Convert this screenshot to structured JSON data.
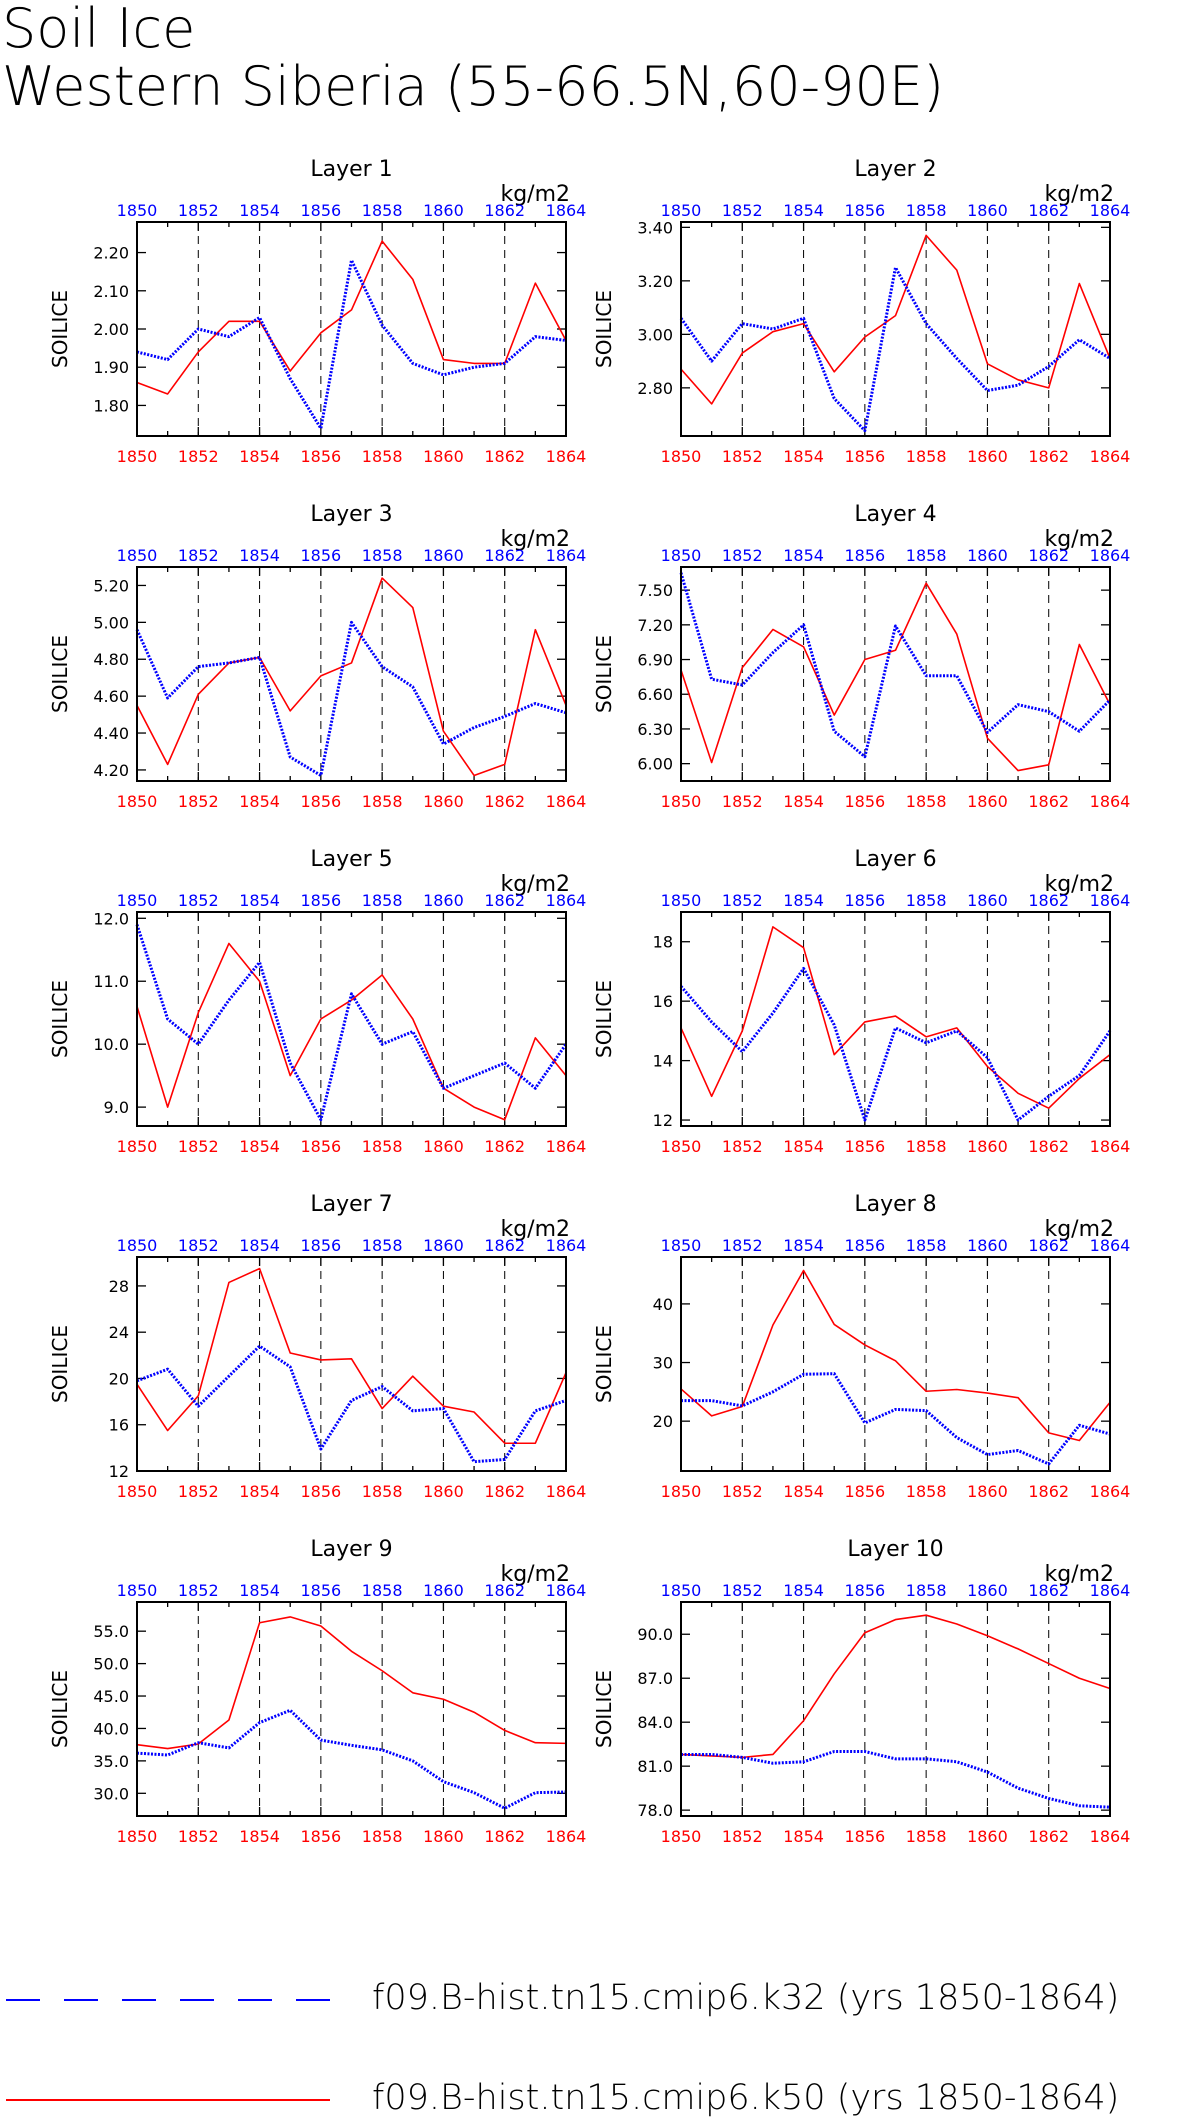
{
  "title": {
    "line1": "Soil Ice",
    "line2": "Western Siberia (55-66.5N,60-90E)"
  },
  "colors": {
    "k32": "#0000ff",
    "k50": "#ff0000",
    "axis": "#000000"
  },
  "legend": [
    {
      "label": "f09.B-hist.tn15.cmip6.k32 (yrs 1850-1864)",
      "color": "#0000ff",
      "style": "dashed"
    },
    {
      "label": "f09.B-hist.tn15.cmip6.k50 (yrs 1850-1864)",
      "color": "#ff0000",
      "style": "solid"
    }
  ],
  "chart_data": [
    {
      "type": "line",
      "title": "Layer 1",
      "units": "kg/m2",
      "ylabel": "SOILICE",
      "x": [
        1850,
        1851,
        1852,
        1853,
        1854,
        1855,
        1856,
        1857,
        1858,
        1859,
        1860,
        1861,
        1862,
        1863,
        1864
      ],
      "xticks": [
        "1850",
        "1852",
        "1854",
        "1856",
        "1858",
        "1860",
        "1862",
        "1864"
      ],
      "ylim": [
        1.72,
        2.28
      ],
      "yticks": [
        "1.80",
        "1.90",
        "2.00",
        "2.10",
        "2.20"
      ],
      "yticks_num": [
        1.8,
        1.9,
        2.0,
        2.1,
        2.2
      ],
      "series": [
        {
          "key": "k32",
          "values": [
            1.94,
            1.92,
            2.0,
            1.98,
            2.03,
            1.87,
            1.74,
            2.18,
            2.01,
            1.91,
            1.88,
            1.9,
            1.91,
            1.98,
            1.97
          ]
        },
        {
          "key": "k50",
          "values": [
            1.86,
            1.83,
            1.94,
            2.02,
            2.02,
            1.89,
            1.99,
            2.05,
            2.23,
            2.13,
            1.92,
            1.91,
            1.91,
            2.12,
            1.97
          ]
        }
      ]
    },
    {
      "type": "line",
      "title": "Layer 2",
      "units": "kg/m2",
      "ylabel": "SOILICE",
      "x": [
        1850,
        1851,
        1852,
        1853,
        1854,
        1855,
        1856,
        1857,
        1858,
        1859,
        1860,
        1861,
        1862,
        1863,
        1864
      ],
      "xticks": [
        "1850",
        "1852",
        "1854",
        "1856",
        "1858",
        "1860",
        "1862",
        "1864"
      ],
      "ylim": [
        2.62,
        3.42
      ],
      "yticks": [
        "2.80",
        "3.00",
        "3.20",
        "3.40"
      ],
      "yticks_num": [
        2.8,
        3.0,
        3.2,
        3.4
      ],
      "series": [
        {
          "key": "k32",
          "values": [
            3.06,
            2.9,
            3.04,
            3.02,
            3.06,
            2.76,
            2.64,
            3.25,
            3.04,
            2.91,
            2.79,
            2.81,
            2.88,
            2.98,
            2.91
          ]
        },
        {
          "key": "k50",
          "values": [
            2.87,
            2.74,
            2.93,
            3.01,
            3.04,
            2.86,
            2.99,
            3.07,
            3.37,
            3.24,
            2.89,
            2.83,
            2.8,
            3.19,
            2.91
          ]
        }
      ]
    },
    {
      "type": "line",
      "title": "Layer 3",
      "units": "kg/m2",
      "ylabel": "SOILICE",
      "x": [
        1850,
        1851,
        1852,
        1853,
        1854,
        1855,
        1856,
        1857,
        1858,
        1859,
        1860,
        1861,
        1862,
        1863,
        1864
      ],
      "xticks": [
        "1850",
        "1852",
        "1854",
        "1856",
        "1858",
        "1860",
        "1862",
        "1864"
      ],
      "ylim": [
        4.14,
        5.3
      ],
      "yticks": [
        "4.20",
        "4.40",
        "4.60",
        "4.80",
        "5.00",
        "5.20"
      ],
      "yticks_num": [
        4.2,
        4.4,
        4.6,
        4.8,
        5.0,
        5.2
      ],
      "series": [
        {
          "key": "k32",
          "values": [
            4.96,
            4.59,
            4.76,
            4.78,
            4.81,
            4.27,
            4.17,
            5.0,
            4.76,
            4.65,
            4.34,
            4.43,
            4.49,
            4.56,
            4.51
          ]
        },
        {
          "key": "k50",
          "values": [
            4.55,
            4.23,
            4.61,
            4.78,
            4.81,
            4.52,
            4.71,
            4.78,
            5.24,
            5.08,
            4.41,
            4.17,
            4.23,
            4.96,
            4.55
          ]
        }
      ]
    },
    {
      "type": "line",
      "title": "Layer 4",
      "units": "kg/m2",
      "ylabel": "SOILICE",
      "x": [
        1850,
        1851,
        1852,
        1853,
        1854,
        1855,
        1856,
        1857,
        1858,
        1859,
        1860,
        1861,
        1862,
        1863,
        1864
      ],
      "xticks": [
        "1850",
        "1852",
        "1854",
        "1856",
        "1858",
        "1860",
        "1862",
        "1864"
      ],
      "ylim": [
        5.85,
        7.7
      ],
      "yticks": [
        "6.00",
        "6.30",
        "6.60",
        "6.90",
        "7.20",
        "7.50"
      ],
      "yticks_num": [
        6.0,
        6.3,
        6.6,
        6.9,
        7.2,
        7.5
      ],
      "series": [
        {
          "key": "k32",
          "values": [
            7.65,
            6.73,
            6.68,
            6.96,
            7.2,
            6.28,
            6.06,
            7.19,
            6.76,
            6.76,
            6.27,
            6.51,
            6.45,
            6.28,
            6.55
          ]
        },
        {
          "key": "k50",
          "values": [
            6.81,
            6.01,
            6.83,
            7.16,
            7.01,
            6.42,
            6.9,
            6.98,
            7.56,
            7.12,
            6.22,
            5.94,
            5.99,
            7.03,
            6.51
          ]
        }
      ]
    },
    {
      "type": "line",
      "title": "Layer 5",
      "units": "kg/m2",
      "ylabel": "SOILICE",
      "x": [
        1850,
        1851,
        1852,
        1853,
        1854,
        1855,
        1856,
        1857,
        1858,
        1859,
        1860,
        1861,
        1862,
        1863,
        1864
      ],
      "xticks": [
        "1850",
        "1852",
        "1854",
        "1856",
        "1858",
        "1860",
        "1862",
        "1864"
      ],
      "ylim": [
        8.7,
        12.1
      ],
      "yticks": [
        "9.0",
        "10.0",
        "11.0",
        "12.0"
      ],
      "yticks_num": [
        9.0,
        10.0,
        11.0,
        12.0
      ],
      "series": [
        {
          "key": "k32",
          "values": [
            11.9,
            10.4,
            10.0,
            10.7,
            11.3,
            9.7,
            8.8,
            10.8,
            10.0,
            10.2,
            9.3,
            9.5,
            9.7,
            9.3,
            10.0
          ]
        },
        {
          "key": "k50",
          "values": [
            10.6,
            9.0,
            10.5,
            11.6,
            11.0,
            9.5,
            10.4,
            10.7,
            11.1,
            10.4,
            9.3,
            9.0,
            8.8,
            10.1,
            9.5
          ]
        }
      ]
    },
    {
      "type": "line",
      "title": "Layer 6",
      "units": "kg/m2",
      "ylabel": "SOILICE",
      "x": [
        1850,
        1851,
        1852,
        1853,
        1854,
        1855,
        1856,
        1857,
        1858,
        1859,
        1860,
        1861,
        1862,
        1863,
        1864
      ],
      "xticks": [
        "1850",
        "1852",
        "1854",
        "1856",
        "1858",
        "1860",
        "1862",
        "1864"
      ],
      "ylim": [
        11.8,
        19.0
      ],
      "yticks": [
        "12",
        "14",
        "16",
        "18"
      ],
      "yticks_num": [
        12,
        14,
        16,
        18
      ],
      "series": [
        {
          "key": "k32",
          "values": [
            16.5,
            15.3,
            14.3,
            15.6,
            17.1,
            15.2,
            12.0,
            15.1,
            14.6,
            15.0,
            14.1,
            12.0,
            12.8,
            13.5,
            15.0
          ]
        },
        {
          "key": "k50",
          "values": [
            15.1,
            12.8,
            15.0,
            18.5,
            17.8,
            14.2,
            15.3,
            15.5,
            14.8,
            15.1,
            13.8,
            12.9,
            12.4,
            13.4,
            14.2
          ]
        }
      ]
    },
    {
      "type": "line",
      "title": "Layer 7",
      "units": "kg/m2",
      "ylabel": "SOILICE",
      "x": [
        1850,
        1851,
        1852,
        1853,
        1854,
        1855,
        1856,
        1857,
        1858,
        1859,
        1860,
        1861,
        1862,
        1863,
        1864
      ],
      "xticks": [
        "1850",
        "1852",
        "1854",
        "1856",
        "1858",
        "1860",
        "1862",
        "1864"
      ],
      "ylim": [
        12,
        30.5
      ],
      "yticks": [
        "12",
        "16",
        "20",
        "24",
        "28"
      ],
      "yticks_num": [
        12,
        16,
        20,
        24,
        28
      ],
      "series": [
        {
          "key": "k32",
          "values": [
            19.8,
            20.8,
            17.6,
            20.2,
            22.8,
            21.0,
            13.9,
            18.1,
            19.3,
            17.2,
            17.4,
            12.8,
            13.0,
            17.2,
            18.1
          ]
        },
        {
          "key": "k50",
          "values": [
            19.5,
            15.5,
            18.5,
            28.3,
            29.5,
            22.2,
            21.6,
            21.7,
            17.4,
            20.2,
            17.6,
            17.1,
            14.4,
            14.4,
            20.5
          ]
        }
      ]
    },
    {
      "type": "line",
      "title": "Layer 8",
      "units": "kg/m2",
      "ylabel": "SOILICE",
      "x": [
        1850,
        1851,
        1852,
        1853,
        1854,
        1855,
        1856,
        1857,
        1858,
        1859,
        1860,
        1861,
        1862,
        1863,
        1864
      ],
      "xticks": [
        "1850",
        "1852",
        "1854",
        "1856",
        "1858",
        "1860",
        "1862",
        "1864"
      ],
      "ylim": [
        11.5,
        48
      ],
      "yticks": [
        "20",
        "30",
        "40"
      ],
      "yticks_num": [
        20,
        30,
        40
      ],
      "series": [
        {
          "key": "k32",
          "values": [
            23.5,
            23.5,
            22.6,
            25.0,
            28.0,
            28.1,
            19.7,
            22.0,
            21.8,
            17.2,
            14.3,
            15.0,
            12.7,
            19.3,
            17.8
          ]
        },
        {
          "key": "k50",
          "values": [
            25.5,
            20.9,
            22.5,
            36.4,
            45.7,
            36.5,
            33.0,
            30.3,
            25.1,
            25.4,
            24.8,
            24.0,
            18.0,
            16.7,
            23.2
          ]
        }
      ]
    },
    {
      "type": "line",
      "title": "Layer 9",
      "units": "kg/m2",
      "ylabel": "SOILICE",
      "x": [
        1850,
        1851,
        1852,
        1853,
        1854,
        1855,
        1856,
        1857,
        1858,
        1859,
        1860,
        1861,
        1862,
        1863,
        1864
      ],
      "xticks": [
        "1850",
        "1852",
        "1854",
        "1856",
        "1858",
        "1860",
        "1862",
        "1864"
      ],
      "ylim": [
        26.5,
        59.5
      ],
      "yticks": [
        "30.0",
        "35.0",
        "40.0",
        "45.0",
        "50.0",
        "55.0"
      ],
      "yticks_num": [
        30,
        35,
        40,
        45,
        50,
        55
      ],
      "series": [
        {
          "key": "k32",
          "values": [
            36.2,
            35.9,
            37.8,
            37.0,
            40.9,
            42.8,
            38.2,
            37.4,
            36.7,
            35.0,
            31.8,
            30.1,
            27.7,
            30.1,
            30.2
          ]
        },
        {
          "key": "k50",
          "values": [
            37.5,
            36.9,
            37.6,
            41.3,
            56.3,
            57.2,
            55.8,
            51.9,
            48.9,
            45.5,
            44.5,
            42.5,
            39.7,
            37.8,
            37.7
          ]
        }
      ]
    },
    {
      "type": "line",
      "title": "Layer 10",
      "units": "kg/m2",
      "ylabel": "SOILICE",
      "x": [
        1850,
        1851,
        1852,
        1853,
        1854,
        1855,
        1856,
        1857,
        1858,
        1859,
        1860,
        1861,
        1862,
        1863,
        1864
      ],
      "xticks": [
        "1850",
        "1852",
        "1854",
        "1856",
        "1858",
        "1860",
        "1862",
        "1864"
      ],
      "ylim": [
        77.6,
        92.2
      ],
      "yticks": [
        "78.0",
        "81.0",
        "84.0",
        "87.0",
        "90.0"
      ],
      "yticks_num": [
        78,
        81,
        84,
        87,
        90
      ],
      "series": [
        {
          "key": "k32",
          "values": [
            81.8,
            81.8,
            81.6,
            81.2,
            81.3,
            82.0,
            82.0,
            81.5,
            81.5,
            81.3,
            80.6,
            79.5,
            78.8,
            78.3,
            78.2
          ]
        },
        {
          "key": "k50",
          "values": [
            81.8,
            81.7,
            81.6,
            81.8,
            84.1,
            87.3,
            90.1,
            91.0,
            91.3,
            90.7,
            89.9,
            89.0,
            88.0,
            87.0,
            86.3
          ]
        }
      ]
    }
  ]
}
